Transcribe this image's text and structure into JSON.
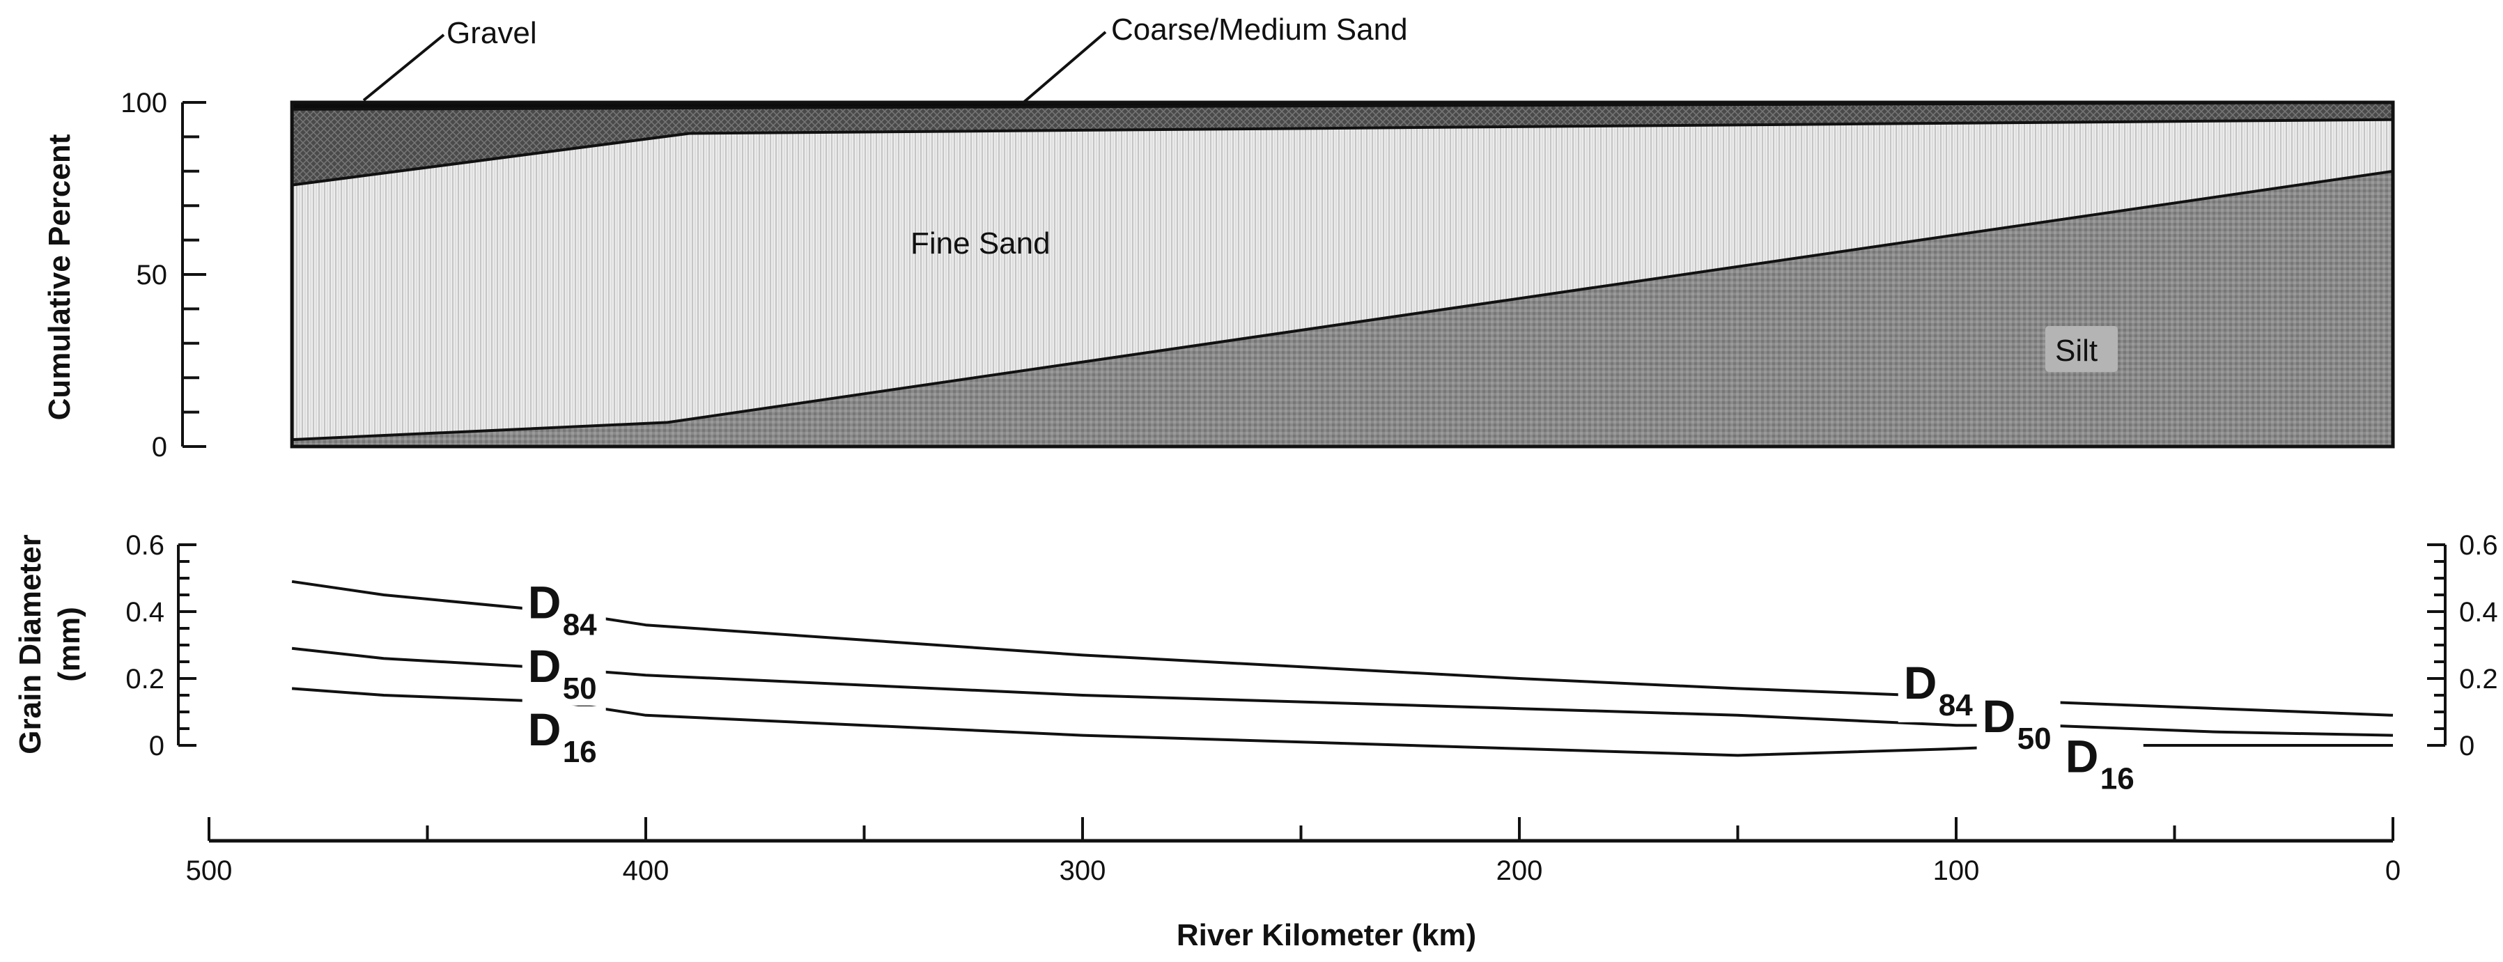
{
  "chart_data": [
    {
      "type": "area",
      "ylabel": "Cumulative Percent",
      "xlabel": "River Kilometer (km)",
      "ylim": [
        0,
        100
      ],
      "xlim": [
        500,
        0
      ],
      "yticks": [
        0,
        50,
        100
      ],
      "xticks": [
        500,
        400,
        300,
        200,
        100,
        0
      ],
      "x_reversed": true,
      "boundaries": [
        {
          "id": "silt_top",
          "x": [
            481,
            395,
            0
          ],
          "y": [
            2,
            7,
            80
          ]
        },
        {
          "id": "fine_top",
          "x": [
            481,
            390,
            0
          ],
          "y": [
            76,
            91,
            95
          ]
        },
        {
          "id": "coarse_top",
          "x": [
            481,
            0
          ],
          "y": [
            98,
            100
          ]
        }
      ],
      "layers": [
        {
          "name": "Silt",
          "lower": null,
          "upper": "silt_top",
          "color": "#8e8e8e"
        },
        {
          "name": "Fine Sand",
          "lower": "silt_top",
          "upper": "fine_top",
          "color": "#e4e4e4"
        },
        {
          "name": "Coarse/Medium Sand",
          "lower": "fine_top",
          "upper": "coarse_top",
          "color": "#555555"
        },
        {
          "name": "Gravel",
          "lower": "coarse_top",
          "upper": 100,
          "color": "#111111"
        }
      ]
    },
    {
      "type": "line",
      "ylabel_lines": [
        "Grain Diameter",
        "(mm)"
      ],
      "ylim": [
        0,
        0.6
      ],
      "yticks": [
        "0",
        "0.2",
        "0.4",
        "0.6"
      ],
      "xlim": [
        500,
        0
      ],
      "x_reversed": true,
      "series": [
        {
          "name": "D84",
          "label_main": "D",
          "label_sub": "84",
          "x": [
            481,
            460,
            420,
            400,
            300,
            200,
            150,
            110,
            80,
            60,
            40,
            0
          ],
          "y": [
            0.49,
            0.45,
            0.4,
            0.36,
            0.27,
            0.2,
            0.17,
            0.15,
            0.13,
            0.12,
            0.11,
            0.09
          ]
        },
        {
          "name": "D50",
          "label_main": "D",
          "label_sub": "50",
          "x": [
            481,
            460,
            420,
            400,
            300,
            200,
            150,
            100,
            80,
            60,
            40,
            0
          ],
          "y": [
            0.29,
            0.26,
            0.23,
            0.21,
            0.15,
            0.11,
            0.09,
            0.06,
            0.06,
            0.05,
            0.04,
            0.03
          ]
        },
        {
          "name": "D16",
          "label_main": "D",
          "label_sub": "16",
          "x": [
            481,
            460,
            420,
            400,
            300,
            200,
            150,
            100,
            80,
            60,
            40,
            0
          ],
          "y": [
            0.17,
            0.15,
            0.13,
            0.09,
            0.03,
            -0.01,
            -0.03,
            -0.01,
            0.0,
            0.0,
            0.0,
            0.0
          ]
        }
      ]
    }
  ],
  "annotations": {
    "gravel": "Gravel",
    "coarse_sand": "Coarse/Medium Sand",
    "fine_sand": "Fine Sand",
    "silt": "Silt"
  },
  "colors": {
    "ink": "#111111",
    "silt_label_bg": "#b4b4b4"
  }
}
